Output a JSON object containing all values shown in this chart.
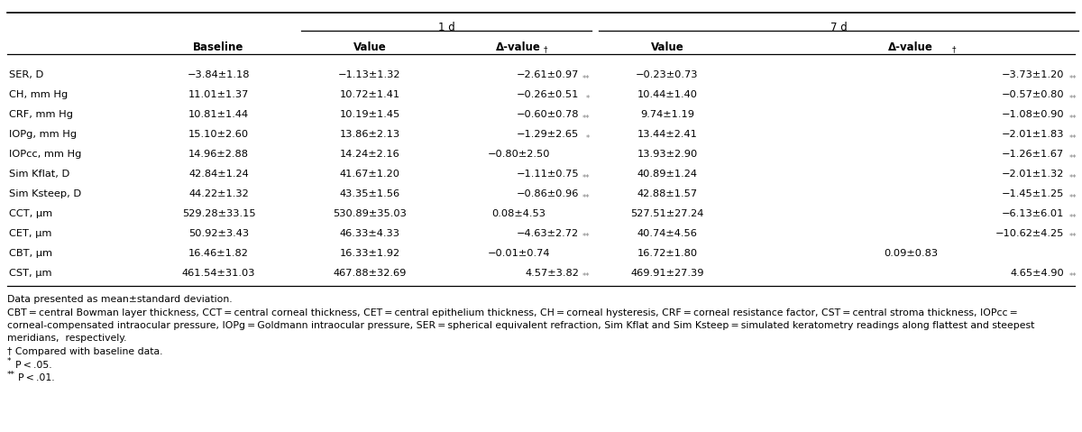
{
  "title_1d": "1 d",
  "title_7d": "7 d",
  "rows": [
    {
      "label": "SER, D",
      "baseline": "−3.84±1.18",
      "val1d": "−1.13±1.32",
      "delta1d": "−2.61±0.97",
      "delta1d_sig": "**",
      "val7d": "−0.23±0.73",
      "delta7d": "−3.73±1.20",
      "delta7d_sig": "**"
    },
    {
      "label": "CH, mm Hg",
      "baseline": "11.01±1.37",
      "val1d": "10.72±1.41",
      "delta1d": "−0.26±0.51",
      "delta1d_sig": "*",
      "val7d": "10.44±1.40",
      "delta7d": "−0.57±0.80",
      "delta7d_sig": "**"
    },
    {
      "label": "CRF, mm Hg",
      "baseline": "10.81±1.44",
      "val1d": "10.19±1.45",
      "delta1d": "−0.60±0.78",
      "delta1d_sig": "**",
      "val7d": "9.74±1.19",
      "delta7d": "−1.08±0.90",
      "delta7d_sig": "**"
    },
    {
      "label": "IOPg, mm Hg",
      "baseline": "15.10±2.60",
      "val1d": "13.86±2.13",
      "delta1d": "−1.29±2.65",
      "delta1d_sig": "*",
      "val7d": "13.44±2.41",
      "delta7d": "−2.01±1.83",
      "delta7d_sig": "**"
    },
    {
      "label": "IOPcc, mm Hg",
      "baseline": "14.96±2.88",
      "val1d": "14.24±2.16",
      "delta1d": "−0.80±2.50",
      "delta1d_sig": "",
      "val7d": "13.93±2.90",
      "delta7d": "−1.26±1.67",
      "delta7d_sig": "**"
    },
    {
      "label": "Sim Kflat, D",
      "baseline": "42.84±1.24",
      "val1d": "41.67±1.20",
      "delta1d": "−1.11±0.75",
      "delta1d_sig": "**",
      "val7d": "40.89±1.24",
      "delta7d": "−2.01±1.32",
      "delta7d_sig": "**"
    },
    {
      "label": "Sim Ksteep, D",
      "baseline": "44.22±1.32",
      "val1d": "43.35±1.56",
      "delta1d": "−0.86±0.96",
      "delta1d_sig": "**",
      "val7d": "42.88±1.57",
      "delta7d": "−1.45±1.25",
      "delta7d_sig": "**"
    },
    {
      "label": "CCT, μm",
      "baseline": "529.28±33.15",
      "val1d": "530.89±35.03",
      "delta1d": "0.08±4.53",
      "delta1d_sig": "",
      "val7d": "527.51±27.24",
      "delta7d": "−6.13±6.01",
      "delta7d_sig": "**"
    },
    {
      "label": "CET, μm",
      "baseline": "50.92±3.43",
      "val1d": "46.33±4.33",
      "delta1d": "−4.63±2.72",
      "delta1d_sig": "**",
      "val7d": "40.74±4.56",
      "delta7d": "−10.62±4.25",
      "delta7d_sig": "**"
    },
    {
      "label": "CBT, μm",
      "baseline": "16.46±1.82",
      "val1d": "16.33±1.92",
      "delta1d": "−0.01±0.74",
      "delta1d_sig": "",
      "val7d": "16.72±1.80",
      "delta7d": "0.09±0.83",
      "delta7d_sig": ""
    },
    {
      "label": "CST, μm",
      "baseline": "461.54±31.03",
      "val1d": "467.88±32.69",
      "delta1d": "4.57±3.82",
      "delta1d_sig": "**",
      "val7d": "469.91±27.39",
      "delta7d": "4.65±4.90",
      "delta7d_sig": "**"
    }
  ],
  "footnote_line1": "Data presented as mean±standard deviation.",
  "footnote_line2": "CBT = central Bowman layer thickness, CCT = central corneal thickness, CET = central epithelium thickness, CH = corneal hysteresis, CRF = corneal resistance factor, CST = central stroma thickness, IOPcc =",
  "footnote_line3": "corneal-compensated intraocular pressure, IOPg = Goldmann intraocular pressure, SER = spherical equivalent refraction, Sim Kflat and Sim Ksteep = simulated keratometry readings along flattest and steepest",
  "footnote_line4": "meridians,  respectively.",
  "footnote_dagger": "† Compared with baseline data.",
  "footnote_star1_super": "*",
  "footnote_star1": "P < .05.",
  "footnote_star2_super": "**",
  "footnote_star2": "P < .01.",
  "sig_color": "#808080",
  "bg_color": "#ffffff",
  "text_color": "#000000",
  "data_fontsize": 8.2,
  "header_fontsize": 8.5,
  "footnote_fontsize": 7.8,
  "font_family": "DejaVu Sans"
}
